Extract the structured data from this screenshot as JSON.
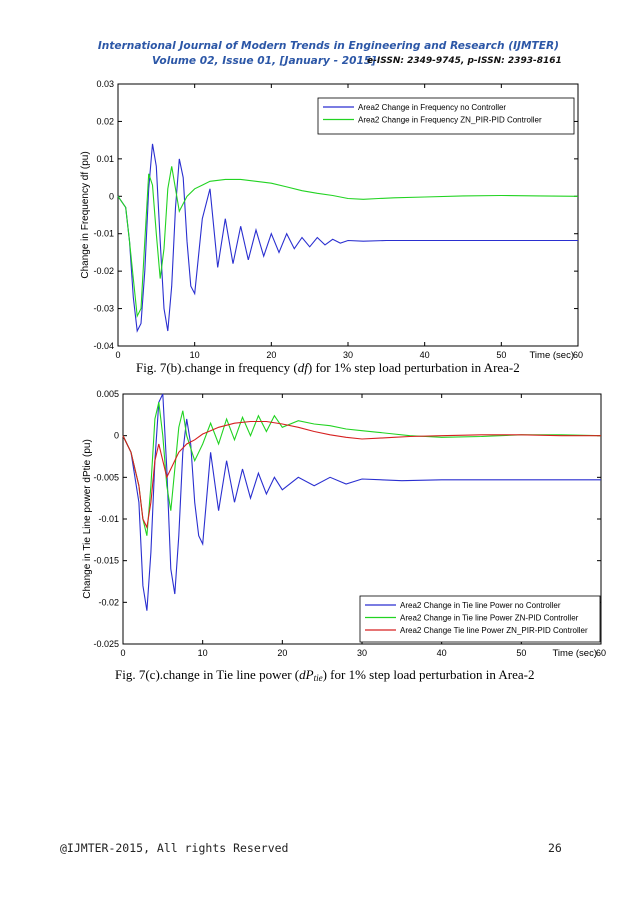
{
  "header": {
    "journal": "International Journal of Modern Trends in Engineering and Research (IJMTER)",
    "volume": "Volume 02, Issue 01, [January - 2015]",
    "issn": "e-ISSN: 2349-9745, p-ISSN: 2393-8161"
  },
  "figures": [
    {
      "caption_prefix": "Fig. 7(b).change in frequency (",
      "caption_var": "df",
      "caption_suffix": ") for 1% step load perturbation in Area-2"
    },
    {
      "caption_prefix": "Fig. 7(c).change in Tie line power (",
      "caption_var": "dP",
      "caption_sub": "tie",
      "caption_suffix": ") for 1% step load perturbation in Area-2"
    }
  ],
  "footer": {
    "copyright": "@IJMTER-2015, All rights Reserved",
    "page_number": "26"
  },
  "colors": {
    "header": "#2c57a7",
    "blue": "#2a2fd0",
    "green": "#22d322",
    "red": "#d62020"
  },
  "chart_data": [
    {
      "type": "line",
      "title": "",
      "xlabel": "Time (sec)",
      "ylabel": "Change in Frequency df (pu)",
      "xlim": [
        0,
        60
      ],
      "ylim": [
        -0.04,
        0.03
      ],
      "xticks": [
        "0",
        "10",
        "20",
        "30",
        "40",
        "50",
        "60"
      ],
      "yticks": [
        "0.03",
        "0.02",
        "0.01",
        "0",
        "-0.01",
        "-0.02",
        "-0.03",
        "-0.04"
      ],
      "legend_position": "top-right",
      "series": [
        {
          "name": "Area2 Change in Frequency no Controller",
          "color": "blue",
          "x": [
            0,
            1,
            1.5,
            2,
            2.5,
            3,
            3.5,
            4,
            4.5,
            5,
            5.5,
            6,
            6.5,
            7,
            7.5,
            8,
            8.5,
            9,
            9.5,
            10,
            11,
            12,
            13,
            14,
            15,
            16,
            17,
            18,
            19,
            20,
            21,
            22,
            23,
            24,
            25,
            26,
            27,
            28,
            29,
            30,
            32,
            35,
            40,
            45,
            50,
            55,
            60
          ],
          "values": [
            0,
            -0.003,
            -0.012,
            -0.027,
            -0.036,
            -0.034,
            -0.02,
            0.002,
            0.014,
            0.008,
            -0.012,
            -0.03,
            -0.036,
            -0.024,
            -0.003,
            0.01,
            0.005,
            -0.012,
            -0.024,
            -0.026,
            -0.006,
            0.002,
            -0.019,
            -0.006,
            -0.018,
            -0.008,
            -0.017,
            -0.009,
            -0.016,
            -0.01,
            -0.015,
            -0.01,
            -0.014,
            -0.011,
            -0.0135,
            -0.011,
            -0.013,
            -0.0115,
            -0.0125,
            -0.0118,
            -0.012,
            -0.0118,
            -0.0118,
            -0.0118,
            -0.0118,
            -0.0118,
            -0.0118
          ]
        },
        {
          "name": "Area2 Change in Frequency ZN_PIR-PID Controller",
          "color": "green",
          "x": [
            0,
            1,
            1.5,
            2,
            2.5,
            3,
            3.5,
            4,
            4.5,
            5,
            5.5,
            6,
            6.5,
            7,
            7.5,
            8,
            9,
            10,
            11,
            12,
            14,
            16,
            18,
            20,
            22,
            24,
            26,
            28,
            30,
            32,
            34,
            36,
            40,
            45,
            50,
            55,
            60
          ],
          "values": [
            0,
            -0.003,
            -0.012,
            -0.022,
            -0.032,
            -0.03,
            -0.012,
            0.006,
            0.003,
            -0.01,
            -0.022,
            -0.014,
            0.002,
            0.008,
            0.002,
            -0.004,
            0.0,
            0.002,
            0.003,
            0.004,
            0.0045,
            0.0045,
            0.004,
            0.0035,
            0.0025,
            0.0015,
            0.0008,
            0.0002,
            -0.0006,
            -0.0008,
            -0.0006,
            -0.0004,
            -0.0002,
            0.0001,
            0.0002,
            0.0001,
            0.0
          ]
        }
      ]
    },
    {
      "type": "line",
      "title": "",
      "xlabel": "Time (sec)",
      "ylabel": "Change in Tie Line power dPtie (pu)",
      "xlim": [
        0,
        60
      ],
      "ylim": [
        -0.025,
        0.005
      ],
      "xticks": [
        "0",
        "10",
        "20",
        "30",
        "40",
        "50",
        "60"
      ],
      "yticks": [
        "0.005",
        "0",
        "-0.005",
        "-0.01",
        "-0.015",
        "-0.02",
        "-0.025"
      ],
      "legend_position": "bottom-right",
      "series": [
        {
          "name": "Area2 Change in Tie line Power no Controller",
          "color": "blue",
          "x": [
            0,
            1,
            2,
            2.5,
            3,
            3.5,
            4,
            4.5,
            5,
            5.5,
            6,
            6.5,
            7,
            7.5,
            8,
            8.5,
            9,
            9.5,
            10,
            11,
            12,
            13,
            14,
            15,
            16,
            17,
            18,
            19,
            20,
            22,
            24,
            26,
            28,
            30,
            35,
            40,
            45,
            50,
            55,
            60
          ],
          "values": [
            0,
            -0.002,
            -0.008,
            -0.018,
            -0.021,
            -0.014,
            -0.003,
            0.004,
            0.005,
            -0.004,
            -0.016,
            -0.019,
            -0.012,
            -0.002,
            0.002,
            -0.001,
            -0.008,
            -0.012,
            -0.013,
            -0.002,
            -0.009,
            -0.003,
            -0.008,
            -0.004,
            -0.0075,
            -0.0045,
            -0.007,
            -0.005,
            -0.0065,
            -0.005,
            -0.006,
            -0.005,
            -0.0058,
            -0.0052,
            -0.0054,
            -0.0053,
            -0.0053,
            -0.0053,
            -0.0053,
            -0.0053
          ]
        },
        {
          "name": "Area2 Change in Tie line Power ZN-PID Controller",
          "color": "green",
          "x": [
            0,
            1,
            2,
            2.5,
            3,
            3.5,
            4,
            4.5,
            5,
            5.5,
            6,
            6.5,
            7,
            7.5,
            8,
            9,
            10,
            11,
            12,
            13,
            14,
            15,
            16,
            17,
            18,
            19,
            20,
            22,
            24,
            26,
            28,
            30,
            32,
            34,
            36,
            38,
            40,
            45,
            50,
            55,
            60
          ],
          "values": [
            0,
            -0.002,
            -0.006,
            -0.01,
            -0.012,
            -0.006,
            0.002,
            0.004,
            0.0,
            -0.006,
            -0.009,
            -0.004,
            0.001,
            0.003,
            0.0,
            -0.003,
            -0.001,
            0.0015,
            -0.001,
            0.002,
            -0.0005,
            0.0022,
            0.0,
            0.0024,
            0.0005,
            0.0024,
            0.001,
            0.0018,
            0.0014,
            0.0012,
            0.0008,
            0.0006,
            0.0004,
            0.0002,
            0.0,
            -0.0001,
            -0.0002,
            -0.0001,
            0.0001,
            0.0001,
            0.0
          ]
        },
        {
          "name": "Area2 Change Tie line Power ZN_PIR-PID Controller",
          "color": "red",
          "x": [
            0,
            1,
            2,
            2.5,
            3,
            3.5,
            4,
            4.5,
            5,
            5.5,
            6,
            7,
            8,
            9,
            10,
            11,
            12,
            14,
            16,
            18,
            20,
            22,
            24,
            26,
            28,
            30,
            32,
            34,
            36,
            40,
            45,
            50,
            55,
            60
          ],
          "values": [
            0,
            -0.002,
            -0.006,
            -0.01,
            -0.011,
            -0.008,
            -0.003,
            -0.001,
            -0.003,
            -0.005,
            -0.004,
            -0.002,
            -0.001,
            -0.0005,
            0.0002,
            0.0006,
            0.001,
            0.0015,
            0.0017,
            0.0017,
            0.0014,
            0.001,
            0.0005,
            0.0001,
            -0.0002,
            -0.0004,
            -0.0003,
            -0.0002,
            -0.0001,
            0.0,
            0.0001,
            0.0001,
            0.0,
            0.0
          ]
        }
      ]
    }
  ]
}
